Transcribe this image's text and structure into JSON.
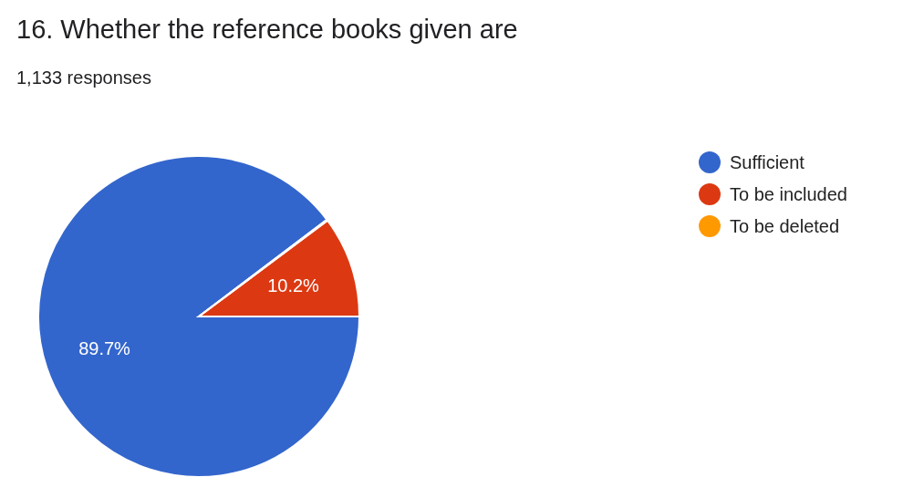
{
  "chart_data": {
    "type": "pie",
    "title": "16. Whether the reference books given are",
    "subtitle": "1,133 responses",
    "categories": [
      "Sufficient",
      "To be included",
      "To be deleted"
    ],
    "values": [
      89.7,
      10.2,
      0.1
    ],
    "colors": [
      "#3366cc",
      "#dc3912",
      "#ff9900"
    ],
    "value_labels": [
      "89.7%",
      "10.2%",
      null
    ],
    "legend": "right"
  }
}
